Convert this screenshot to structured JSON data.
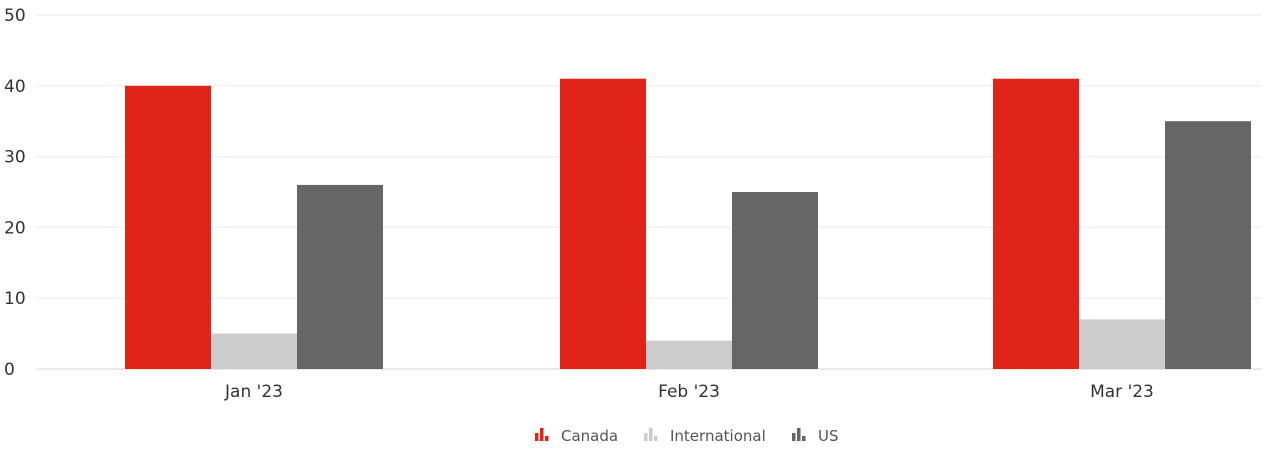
{
  "chart_data": {
    "type": "bar",
    "title": "",
    "xlabel": "",
    "ylabel": "",
    "categories": [
      "Jan '23",
      "Feb '23",
      "Mar '23"
    ],
    "ylim": [
      0,
      50
    ],
    "yticks": [
      0,
      10,
      20,
      30,
      40,
      50
    ],
    "grid": true,
    "legend_position": "bottom-center",
    "series": [
      {
        "name": "Canada",
        "color": "#e0241a",
        "values": [
          40,
          41,
          41
        ]
      },
      {
        "name": "International",
        "color": "#cccccc",
        "values": [
          5,
          4,
          7
        ]
      },
      {
        "name": "US",
        "color": "#666666",
        "values": [
          26,
          25,
          35
        ]
      }
    ],
    "legend_icon": "bar-chart-icon"
  }
}
